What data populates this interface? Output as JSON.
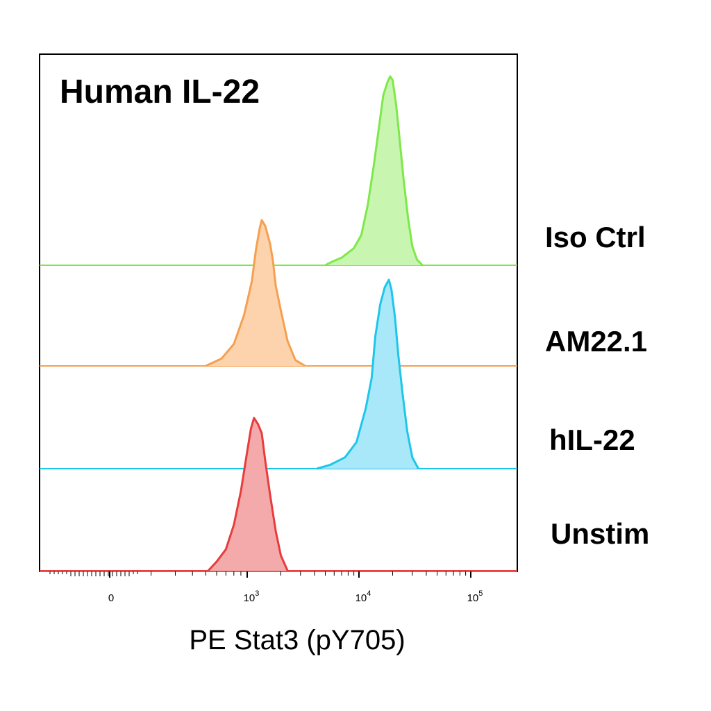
{
  "chart_data": {
    "type": "area",
    "title": "Human IL-22",
    "xlabel": "PE Stat3 (pY705)",
    "ylabel": "",
    "x_scale": "biexponential",
    "x_ticks": [
      {
        "value": 0,
        "base": "0",
        "exp": ""
      },
      {
        "value": 1000,
        "base": "10",
        "exp": "3"
      },
      {
        "value": 10000,
        "base": "10",
        "exp": "4"
      },
      {
        "value": 100000,
        "base": "10",
        "exp": "5"
      }
    ],
    "series": [
      {
        "name": "Iso Ctrl",
        "color": "#7ee84a",
        "fill": "#c8f5b0",
        "peak_x": 19000,
        "points": [
          [
            5000,
            0.0
          ],
          [
            5800,
            0.02
          ],
          [
            7000,
            0.04
          ],
          [
            9000,
            0.09
          ],
          [
            10500,
            0.16
          ],
          [
            12000,
            0.32
          ],
          [
            13500,
            0.52
          ],
          [
            15000,
            0.72
          ],
          [
            16500,
            0.9
          ],
          [
            18000,
            0.97
          ],
          [
            19000,
            1.0
          ],
          [
            20000,
            0.98
          ],
          [
            21500,
            0.85
          ],
          [
            23000,
            0.68
          ],
          [
            25000,
            0.46
          ],
          [
            27500,
            0.25
          ],
          [
            30000,
            0.1
          ],
          [
            33000,
            0.03
          ],
          [
            37000,
            0.0
          ]
        ]
      },
      {
        "name": "AM22.1",
        "color": "#f5a050",
        "fill": "#fdd3ad",
        "peak_x": 1350,
        "points": [
          [
            500,
            0.0
          ],
          [
            650,
            0.05
          ],
          [
            800,
            0.15
          ],
          [
            950,
            0.35
          ],
          [
            1100,
            0.58
          ],
          [
            1200,
            0.8
          ],
          [
            1300,
            0.95
          ],
          [
            1350,
            1.0
          ],
          [
            1450,
            0.96
          ],
          [
            1600,
            0.84
          ],
          [
            1700,
            0.72
          ],
          [
            1800,
            0.55
          ],
          [
            2000,
            0.38
          ],
          [
            2300,
            0.17
          ],
          [
            2700,
            0.04
          ],
          [
            3300,
            0.0
          ]
        ]
      },
      {
        "name": "hIL-22",
        "color": "#1ec6ea",
        "fill": "#a8e8f8",
        "peak_x": 18500,
        "points": [
          [
            4200,
            0.0
          ],
          [
            5500,
            0.02
          ],
          [
            7500,
            0.06
          ],
          [
            9500,
            0.14
          ],
          [
            11500,
            0.32
          ],
          [
            13000,
            0.48
          ],
          [
            14000,
            0.7
          ],
          [
            15500,
            0.87
          ],
          [
            17000,
            0.96
          ],
          [
            18500,
            1.0
          ],
          [
            19500,
            0.95
          ],
          [
            21000,
            0.8
          ],
          [
            22500,
            0.6
          ],
          [
            24500,
            0.4
          ],
          [
            27000,
            0.2
          ],
          [
            30000,
            0.06
          ],
          [
            34000,
            0.0
          ]
        ]
      },
      {
        "name": "Unstim",
        "color": "#e83c3c",
        "fill": "#f4aaaa",
        "peak_x": 1150,
        "points": [
          [
            520,
            0.0
          ],
          [
            600,
            0.06
          ],
          [
            700,
            0.14
          ],
          [
            800,
            0.3
          ],
          [
            900,
            0.52
          ],
          [
            1000,
            0.78
          ],
          [
            1080,
            0.93
          ],
          [
            1150,
            1.0
          ],
          [
            1250,
            0.96
          ],
          [
            1350,
            0.9
          ],
          [
            1450,
            0.72
          ],
          [
            1600,
            0.5
          ],
          [
            1800,
            0.26
          ],
          [
            2000,
            0.1
          ],
          [
            2300,
            0.0
          ]
        ]
      }
    ],
    "grid": false,
    "legend": "right"
  }
}
